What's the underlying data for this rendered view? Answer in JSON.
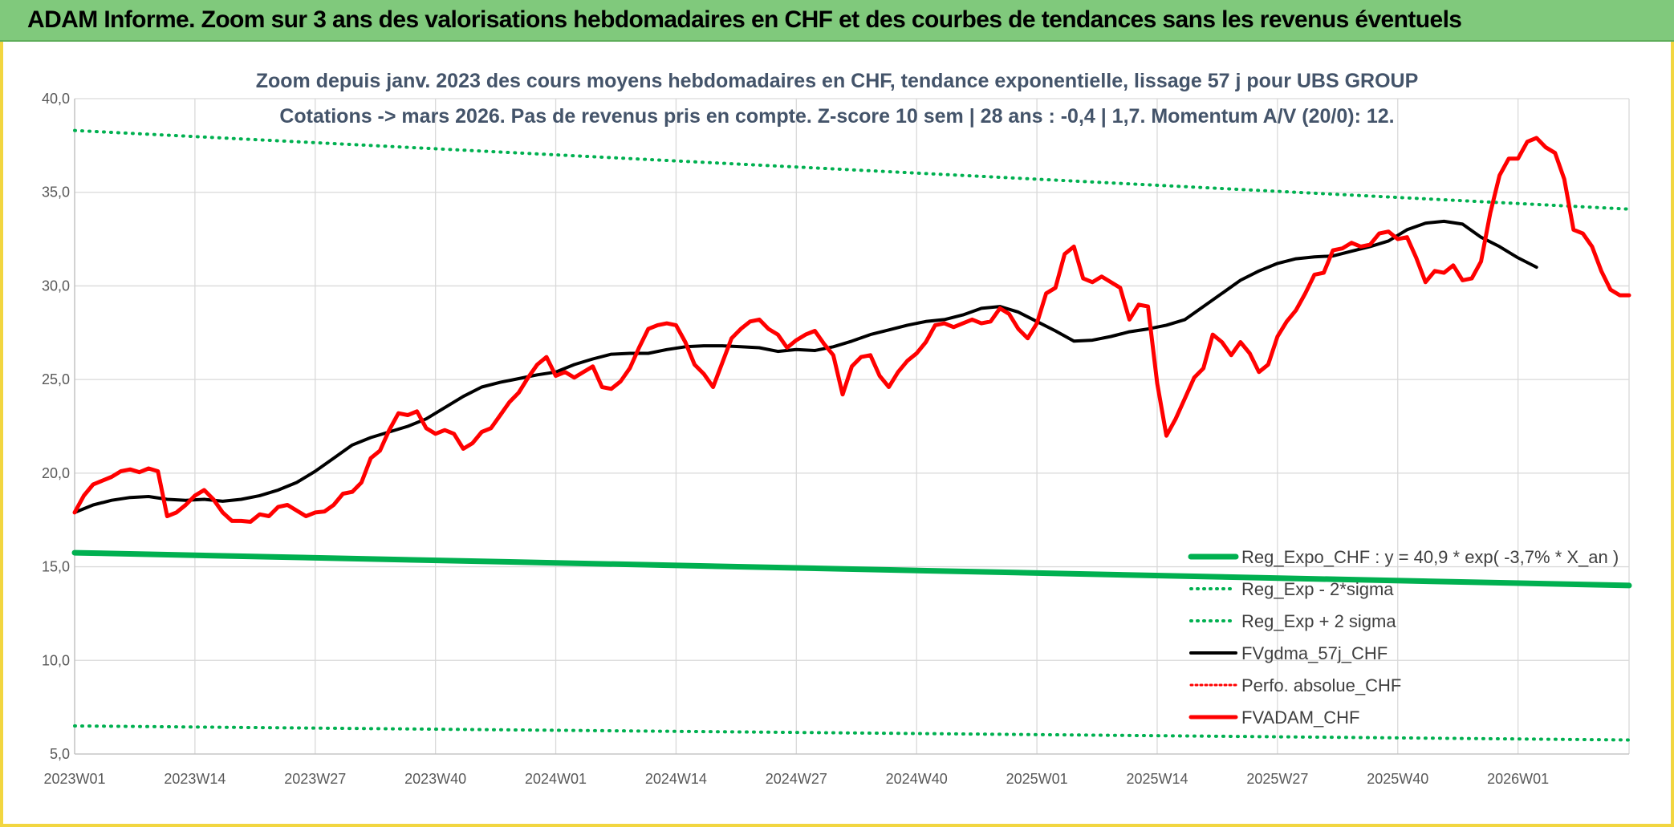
{
  "header": {
    "title": "ADAM Informe. Zoom sur 3 ans des valorisations hebdomadaires en CHF et des courbes de tendances sans les revenus éventuels"
  },
  "chart_data": {
    "type": "line",
    "title_line1": "Zoom depuis janv. 2023 des cours moyens hebdomadaires en CHF, tendance exponentielle, lissage 57 j pour UBS GROUP",
    "title_line2": "Cotations -> mars 2026. Pas de revenus pris en compte. Z-score 10 sem | 28 ans : -0,4 | 1,7. Momentum A/V (20/0): 12.",
    "xlabel": "",
    "ylabel": "",
    "ylim": [
      5,
      40
    ],
    "yticks": [
      "40,0",
      "35,0",
      "30,0",
      "25,0",
      "20,0",
      "15,0",
      "10,0",
      "5,0"
    ],
    "xtick_labels": [
      "2023W01",
      "2023W14",
      "2023W27",
      "2023W40",
      "2024W01",
      "2024W14",
      "2024W27",
      "2024W40",
      "2025W01",
      "2025W14",
      "2025W27",
      "2025W40",
      "2026W01"
    ],
    "grid": true,
    "legend_position": "bottom-right",
    "colors": {
      "reg_expo": "#00b050",
      "band": "#00b050",
      "gdma": "#000000",
      "perfo": "#ff0000",
      "adam": "#ff0000"
    },
    "series": [
      {
        "name": "Reg_Expo_CHF : y = 40,9 * exp( -3,7% *  X_an )",
        "key": "reg_expo",
        "style": "thick",
        "start": 15.75,
        "end": 14.0
      },
      {
        "name": "Reg_Exp - 2*sigma",
        "key": "lower_band",
        "style": "dotted",
        "start": 6.5,
        "end": 5.75
      },
      {
        "name": "Reg_Exp + 2 sigma",
        "key": "upper_band",
        "style": "dotted",
        "start": 38.3,
        "end": 34.1
      },
      {
        "name": "FVgdma_57j_CHF",
        "key": "gdma",
        "style": "solid",
        "points": [
          [
            0,
            17.9
          ],
          [
            2,
            18.3
          ],
          [
            4,
            18.55
          ],
          [
            6,
            18.7
          ],
          [
            8,
            18.75
          ],
          [
            10,
            18.6
          ],
          [
            12,
            18.55
          ],
          [
            14,
            18.6
          ],
          [
            16,
            18.5
          ],
          [
            18,
            18.6
          ],
          [
            20,
            18.8
          ],
          [
            22,
            19.1
          ],
          [
            24,
            19.5
          ],
          [
            26,
            20.1
          ],
          [
            28,
            20.8
          ],
          [
            30,
            21.5
          ],
          [
            32,
            21.9
          ],
          [
            34,
            22.2
          ],
          [
            36,
            22.5
          ],
          [
            38,
            22.9
          ],
          [
            40,
            23.5
          ],
          [
            42,
            24.1
          ],
          [
            44,
            24.6
          ],
          [
            46,
            24.85
          ],
          [
            48,
            25.05
          ],
          [
            50,
            25.25
          ],
          [
            52,
            25.4
          ],
          [
            54,
            25.8
          ],
          [
            56,
            26.1
          ],
          [
            58,
            26.35
          ],
          [
            60,
            26.4
          ],
          [
            62,
            26.4
          ],
          [
            64,
            26.6
          ],
          [
            66,
            26.75
          ],
          [
            68,
            26.8
          ],
          [
            70,
            26.8
          ],
          [
            72,
            26.75
          ],
          [
            74,
            26.7
          ],
          [
            76,
            26.5
          ],
          [
            78,
            26.6
          ],
          [
            80,
            26.55
          ],
          [
            82,
            26.75
          ],
          [
            84,
            27.05
          ],
          [
            86,
            27.4
          ],
          [
            88,
            27.65
          ],
          [
            90,
            27.9
          ],
          [
            92,
            28.1
          ],
          [
            94,
            28.2
          ],
          [
            96,
            28.45
          ],
          [
            98,
            28.8
          ],
          [
            100,
            28.9
          ],
          [
            102,
            28.6
          ],
          [
            104,
            28.1
          ],
          [
            106,
            27.6
          ],
          [
            108,
            27.05
          ],
          [
            110,
            27.1
          ],
          [
            112,
            27.3
          ],
          [
            114,
            27.55
          ],
          [
            116,
            27.7
          ],
          [
            118,
            27.9
          ],
          [
            120,
            28.2
          ],
          [
            122,
            28.9
          ],
          [
            124,
            29.6
          ],
          [
            126,
            30.3
          ],
          [
            128,
            30.8
          ],
          [
            130,
            31.2
          ],
          [
            132,
            31.45
          ],
          [
            134,
            31.55
          ],
          [
            136,
            31.6
          ],
          [
            138,
            31.85
          ],
          [
            140,
            32.1
          ],
          [
            142,
            32.4
          ],
          [
            144,
            33.0
          ],
          [
            146,
            33.35
          ],
          [
            148,
            33.45
          ],
          [
            150,
            33.3
          ],
          [
            152,
            32.6
          ],
          [
            154,
            32.1
          ],
          [
            156,
            31.5
          ],
          [
            158,
            31.0
          ]
        ]
      },
      {
        "name": "Perfo. absolue_CHF",
        "key": "perfo",
        "style": "dotted",
        "points": []
      },
      {
        "name": "FVADAM_CHF",
        "key": "adam",
        "style": "thick",
        "points": [
          [
            0,
            17.9
          ],
          [
            1,
            18.8
          ],
          [
            2,
            19.4
          ],
          [
            3,
            19.6
          ],
          [
            4,
            19.8
          ],
          [
            5,
            20.1
          ],
          [
            6,
            20.2
          ],
          [
            7,
            20.05
          ],
          [
            8,
            20.25
          ],
          [
            9,
            20.1
          ],
          [
            10,
            17.7
          ],
          [
            11,
            17.9
          ],
          [
            12,
            18.3
          ],
          [
            13,
            18.8
          ],
          [
            14,
            19.1
          ],
          [
            15,
            18.6
          ],
          [
            16,
            17.9
          ],
          [
            17,
            17.45
          ],
          [
            18,
            17.45
          ],
          [
            19,
            17.4
          ],
          [
            20,
            17.8
          ],
          [
            21,
            17.7
          ],
          [
            22,
            18.2
          ],
          [
            23,
            18.3
          ],
          [
            24,
            18.0
          ],
          [
            25,
            17.7
          ],
          [
            26,
            17.9
          ],
          [
            27,
            17.95
          ],
          [
            28,
            18.3
          ],
          [
            29,
            18.9
          ],
          [
            30,
            19.0
          ],
          [
            31,
            19.5
          ],
          [
            32,
            20.8
          ],
          [
            33,
            21.2
          ],
          [
            34,
            22.3
          ],
          [
            35,
            23.2
          ],
          [
            36,
            23.1
          ],
          [
            37,
            23.3
          ],
          [
            38,
            22.4
          ],
          [
            39,
            22.1
          ],
          [
            40,
            22.3
          ],
          [
            41,
            22.1
          ],
          [
            42,
            21.3
          ],
          [
            43,
            21.6
          ],
          [
            44,
            22.2
          ],
          [
            45,
            22.4
          ],
          [
            46,
            23.1
          ],
          [
            47,
            23.8
          ],
          [
            48,
            24.3
          ],
          [
            49,
            25.1
          ],
          [
            50,
            25.8
          ],
          [
            51,
            26.2
          ],
          [
            52,
            25.2
          ],
          [
            53,
            25.4
          ],
          [
            54,
            25.1
          ],
          [
            55,
            25.4
          ],
          [
            56,
            25.7
          ],
          [
            57,
            24.6
          ],
          [
            58,
            24.5
          ],
          [
            59,
            24.9
          ],
          [
            60,
            25.6
          ],
          [
            61,
            26.7
          ],
          [
            62,
            27.7
          ],
          [
            63,
            27.9
          ],
          [
            64,
            28.0
          ],
          [
            65,
            27.9
          ],
          [
            66,
            27.0
          ],
          [
            67,
            25.8
          ],
          [
            68,
            25.3
          ],
          [
            69,
            24.6
          ],
          [
            70,
            25.9
          ],
          [
            71,
            27.2
          ],
          [
            72,
            27.7
          ],
          [
            73,
            28.1
          ],
          [
            74,
            28.2
          ],
          [
            75,
            27.7
          ],
          [
            76,
            27.4
          ],
          [
            77,
            26.7
          ],
          [
            78,
            27.1
          ],
          [
            79,
            27.4
          ],
          [
            80,
            27.6
          ],
          [
            81,
            26.9
          ],
          [
            82,
            26.3
          ],
          [
            83,
            24.2
          ],
          [
            84,
            25.7
          ],
          [
            85,
            26.2
          ],
          [
            86,
            26.3
          ],
          [
            87,
            25.2
          ],
          [
            88,
            24.6
          ],
          [
            89,
            25.4
          ],
          [
            90,
            26.0
          ],
          [
            91,
            26.4
          ],
          [
            92,
            27.0
          ],
          [
            93,
            27.9
          ],
          [
            94,
            28.0
          ],
          [
            95,
            27.8
          ],
          [
            96,
            28.0
          ],
          [
            97,
            28.2
          ],
          [
            98,
            28.0
          ],
          [
            99,
            28.1
          ],
          [
            100,
            28.8
          ],
          [
            101,
            28.5
          ],
          [
            102,
            27.7
          ],
          [
            103,
            27.2
          ],
          [
            104,
            28.0
          ],
          [
            105,
            29.6
          ],
          [
            106,
            29.9
          ],
          [
            107,
            31.7
          ],
          [
            108,
            32.1
          ],
          [
            109,
            30.4
          ],
          [
            110,
            30.2
          ],
          [
            111,
            30.5
          ],
          [
            112,
            30.2
          ],
          [
            113,
            29.9
          ],
          [
            114,
            28.2
          ],
          [
            115,
            29.0
          ],
          [
            116,
            28.9
          ],
          [
            117,
            24.8
          ],
          [
            118,
            22.0
          ],
          [
            119,
            22.9
          ],
          [
            120,
            24.0
          ],
          [
            121,
            25.1
          ],
          [
            122,
            25.6
          ],
          [
            123,
            27.4
          ],
          [
            124,
            27.0
          ],
          [
            125,
            26.3
          ],
          [
            126,
            27.0
          ],
          [
            127,
            26.4
          ],
          [
            128,
            25.4
          ],
          [
            129,
            25.8
          ],
          [
            130,
            27.3
          ],
          [
            131,
            28.1
          ],
          [
            132,
            28.7
          ],
          [
            133,
            29.6
          ],
          [
            134,
            30.6
          ],
          [
            135,
            30.7
          ],
          [
            136,
            31.9
          ],
          [
            137,
            32.0
          ],
          [
            138,
            32.3
          ],
          [
            139,
            32.1
          ],
          [
            140,
            32.2
          ],
          [
            141,
            32.8
          ],
          [
            142,
            32.9
          ],
          [
            143,
            32.5
          ],
          [
            144,
            32.6
          ],
          [
            145,
            31.5
          ],
          [
            146,
            30.2
          ],
          [
            147,
            30.8
          ],
          [
            148,
            30.7
          ],
          [
            149,
            31.1
          ],
          [
            150,
            30.3
          ],
          [
            151,
            30.4
          ],
          [
            152,
            31.3
          ],
          [
            153,
            33.9
          ],
          [
            154,
            35.9
          ],
          [
            155,
            36.8
          ],
          [
            156,
            36.8
          ],
          [
            157,
            37.7
          ],
          [
            158,
            37.9
          ],
          [
            159,
            37.4
          ],
          [
            160,
            37.1
          ],
          [
            161,
            35.7
          ],
          [
            162,
            33.0
          ],
          [
            163,
            32.8
          ],
          [
            164,
            32.1
          ],
          [
            165,
            30.8
          ],
          [
            166,
            29.8
          ],
          [
            167,
            29.5
          ],
          [
            168,
            29.5
          ]
        ]
      }
    ]
  }
}
